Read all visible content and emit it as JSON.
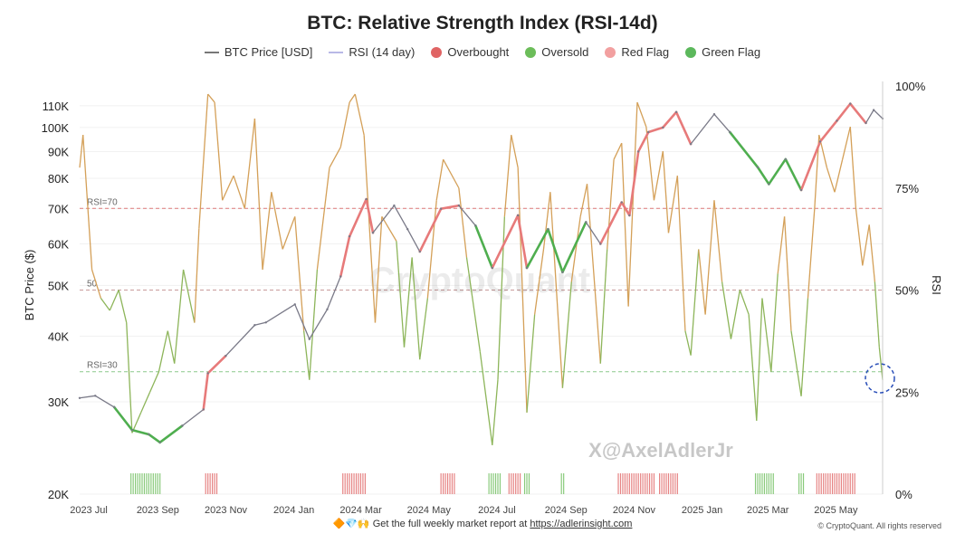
{
  "title": "BTC: Relative Strength Index (RSI-14d)",
  "legend": [
    {
      "label": "BTC Price [USD]",
      "kind": "line",
      "color": "#777777"
    },
    {
      "label": "RSI (14 day)",
      "kind": "line",
      "color": "#b8b8e6"
    },
    {
      "label": "Overbought",
      "kind": "dot",
      "color": "#e06464"
    },
    {
      "label": "Oversold",
      "kind": "dot",
      "color": "#6cbd5a"
    },
    {
      "label": "Red Flag",
      "kind": "dot",
      "color": "#f2a0a0"
    },
    {
      "label": "Green Flag",
      "kind": "dot",
      "color": "#5cb85c"
    }
  ],
  "watermark": "CryptoQuant",
  "author_tag": "X@AxelAdlerJr",
  "footer": {
    "emoji": "🔶💎🙌",
    "text": "Get the full weekly market report at",
    "link": "https://adlerinsight.com"
  },
  "copyright": "© CryptoQuant. All rights reserved",
  "chart_data": {
    "type": "line",
    "ylabel": "BTC Price ($)",
    "y2label": "RSI",
    "y_scale": "log",
    "ylim": [
      20000,
      120000
    ],
    "y2lim": [
      0,
      100
    ],
    "y_ticks": [
      "20K",
      "30K",
      "40K",
      "50K",
      "60K",
      "70K",
      "80K",
      "90K",
      "100K",
      "110K"
    ],
    "y_tick_values": [
      20000,
      30000,
      40000,
      50000,
      60000,
      70000,
      80000,
      90000,
      100000,
      110000
    ],
    "y2_ticks": [
      "0%",
      "25%",
      "50%",
      "75%",
      "100%"
    ],
    "y2_tick_values": [
      0,
      25,
      50,
      75,
      100
    ],
    "x_ticks": [
      "2023 Jul",
      "2023 Sep",
      "2023 Nov",
      "2024 Jan",
      "2024 Mar",
      "2024 May",
      "2024 Jul",
      "2024 Sep",
      "2024 Nov",
      "2025 Jan",
      "2025 Mar",
      "2025 May"
    ],
    "x_tick_dates": [
      "2023-07-01",
      "2023-09-01",
      "2023-11-01",
      "2024-01-01",
      "2024-03-01",
      "2024-05-01",
      "2024-07-01",
      "2024-09-01",
      "2024-11-01",
      "2025-01-01",
      "2025-03-01",
      "2025-05-01"
    ],
    "x_range": [
      "2023-07-01",
      "2025-06-20"
    ],
    "reference_lines": [
      {
        "label": "RSI=70",
        "value": 70,
        "color": "#e07a7a"
      },
      {
        "label": "50",
        "value": 50,
        "color": "#c89c9c"
      },
      {
        "label": "RSI=30",
        "value": 30,
        "color": "#8cc98c"
      }
    ],
    "series": [
      {
        "name": "BTC Price [USD]",
        "color": "#7a7a88",
        "points": [
          [
            "2023-07-01",
            30500
          ],
          [
            "2023-07-15",
            30800
          ],
          [
            "2023-08-01",
            29300
          ],
          [
            "2023-08-17",
            26500
          ],
          [
            "2023-09-01",
            26000
          ],
          [
            "2023-09-11",
            25100
          ],
          [
            "2023-10-01",
            27000
          ],
          [
            "2023-10-20",
            29000
          ],
          [
            "2023-10-24",
            34000
          ],
          [
            "2023-11-09",
            36700
          ],
          [
            "2023-12-05",
            42000
          ],
          [
            "2023-12-15",
            42500
          ],
          [
            "2024-01-10",
            46000
          ],
          [
            "2024-01-23",
            39500
          ],
          [
            "2024-02-08",
            45000
          ],
          [
            "2024-02-20",
            52000
          ],
          [
            "2024-02-28",
            62000
          ],
          [
            "2024-03-14",
            73000
          ],
          [
            "2024-03-20",
            63000
          ],
          [
            "2024-04-08",
            71000
          ],
          [
            "2024-04-20",
            64000
          ],
          [
            "2024-05-01",
            58000
          ],
          [
            "2024-05-20",
            70000
          ],
          [
            "2024-06-05",
            71000
          ],
          [
            "2024-06-20",
            65000
          ],
          [
            "2024-07-05",
            54000
          ],
          [
            "2024-07-28",
            68000
          ],
          [
            "2024-08-05",
            54000
          ],
          [
            "2024-08-24",
            64000
          ],
          [
            "2024-09-06",
            53000
          ],
          [
            "2024-09-27",
            66000
          ],
          [
            "2024-10-10",
            60000
          ],
          [
            "2024-10-29",
            72000
          ],
          [
            "2024-11-05",
            68000
          ],
          [
            "2024-11-13",
            90000
          ],
          [
            "2024-11-22",
            98000
          ],
          [
            "2024-12-05",
            100000
          ],
          [
            "2024-12-17",
            107000
          ],
          [
            "2024-12-30",
            93000
          ],
          [
            "2025-01-20",
            106000
          ],
          [
            "2025-02-03",
            98000
          ],
          [
            "2025-02-28",
            84000
          ],
          [
            "2025-03-10",
            78000
          ],
          [
            "2025-03-25",
            87000
          ],
          [
            "2025-04-08",
            76000
          ],
          [
            "2025-04-25",
            94000
          ],
          [
            "2025-05-10",
            103000
          ],
          [
            "2025-05-22",
            111000
          ],
          [
            "2025-06-05",
            102000
          ],
          [
            "2025-06-12",
            108000
          ],
          [
            "2025-06-20",
            104000
          ]
        ]
      },
      {
        "name": "RSI (14 day)",
        "color": "#c7a86b",
        "points": [
          [
            "2023-07-01",
            80
          ],
          [
            "2023-07-04",
            88
          ],
          [
            "2023-07-12",
            55
          ],
          [
            "2023-07-20",
            48
          ],
          [
            "2023-07-28",
            45
          ],
          [
            "2023-08-05",
            50
          ],
          [
            "2023-08-12",
            42
          ],
          [
            "2023-08-17",
            15
          ],
          [
            "2023-08-25",
            20
          ],
          [
            "2023-09-02",
            25
          ],
          [
            "2023-09-10",
            30
          ],
          [
            "2023-09-18",
            40
          ],
          [
            "2023-09-24",
            32
          ],
          [
            "2023-10-02",
            55
          ],
          [
            "2023-10-12",
            42
          ],
          [
            "2023-10-16",
            65
          ],
          [
            "2023-10-24",
            98
          ],
          [
            "2023-10-30",
            96
          ],
          [
            "2023-11-06",
            72
          ],
          [
            "2023-11-16",
            78
          ],
          [
            "2023-11-26",
            70
          ],
          [
            "2023-12-05",
            92
          ],
          [
            "2023-12-12",
            55
          ],
          [
            "2023-12-20",
            74
          ],
          [
            "2023-12-30",
            60
          ],
          [
            "2024-01-10",
            68
          ],
          [
            "2024-01-18",
            40
          ],
          [
            "2024-01-23",
            28
          ],
          [
            "2024-01-30",
            55
          ],
          [
            "2024-02-10",
            80
          ],
          [
            "2024-02-20",
            85
          ],
          [
            "2024-02-28",
            96
          ],
          [
            "2024-03-04",
            98
          ],
          [
            "2024-03-12",
            88
          ],
          [
            "2024-03-18",
            60
          ],
          [
            "2024-03-22",
            42
          ],
          [
            "2024-03-28",
            68
          ],
          [
            "2024-04-10",
            62
          ],
          [
            "2024-04-17",
            36
          ],
          [
            "2024-04-24",
            58
          ],
          [
            "2024-05-01",
            33
          ],
          [
            "2024-05-08",
            48
          ],
          [
            "2024-05-16",
            72
          ],
          [
            "2024-05-22",
            82
          ],
          [
            "2024-06-05",
            75
          ],
          [
            "2024-06-12",
            58
          ],
          [
            "2024-06-24",
            35
          ],
          [
            "2024-07-05",
            12
          ],
          [
            "2024-07-10",
            28
          ],
          [
            "2024-07-16",
            68
          ],
          [
            "2024-07-22",
            88
          ],
          [
            "2024-07-28",
            80
          ],
          [
            "2024-08-05",
            20
          ],
          [
            "2024-08-12",
            44
          ],
          [
            "2024-08-20",
            60
          ],
          [
            "2024-08-26",
            74
          ],
          [
            "2024-09-06",
            26
          ],
          [
            "2024-09-14",
            52
          ],
          [
            "2024-09-22",
            68
          ],
          [
            "2024-09-28",
            76
          ],
          [
            "2024-10-10",
            32
          ],
          [
            "2024-10-16",
            60
          ],
          [
            "2024-10-22",
            82
          ],
          [
            "2024-10-29",
            86
          ],
          [
            "2024-11-04",
            46
          ],
          [
            "2024-11-12",
            96
          ],
          [
            "2024-11-20",
            90
          ],
          [
            "2024-11-27",
            72
          ],
          [
            "2024-12-05",
            84
          ],
          [
            "2024-12-10",
            64
          ],
          [
            "2024-12-18",
            78
          ],
          [
            "2024-12-25",
            40
          ],
          [
            "2024-12-30",
            34
          ],
          [
            "2025-01-06",
            60
          ],
          [
            "2025-01-12",
            44
          ],
          [
            "2025-01-20",
            72
          ],
          [
            "2025-01-27",
            52
          ],
          [
            "2025-02-04",
            38
          ],
          [
            "2025-02-12",
            50
          ],
          [
            "2025-02-20",
            44
          ],
          [
            "2025-02-27",
            18
          ],
          [
            "2025-03-04",
            48
          ],
          [
            "2025-03-12",
            30
          ],
          [
            "2025-03-18",
            54
          ],
          [
            "2025-03-24",
            68
          ],
          [
            "2025-03-30",
            40
          ],
          [
            "2025-04-08",
            24
          ],
          [
            "2025-04-14",
            48
          ],
          [
            "2025-04-20",
            70
          ],
          [
            "2025-04-24",
            88
          ],
          [
            "2025-05-01",
            80
          ],
          [
            "2025-05-08",
            74
          ],
          [
            "2025-05-15",
            82
          ],
          [
            "2025-05-22",
            90
          ],
          [
            "2025-05-27",
            70
          ],
          [
            "2025-06-02",
            56
          ],
          [
            "2025-06-08",
            66
          ],
          [
            "2025-06-13",
            52
          ],
          [
            "2025-06-17",
            36
          ],
          [
            "2025-06-20",
            28
          ]
        ]
      }
    ],
    "overbought_ranges": [
      [
        "2023-10-22",
        "2023-11-02"
      ],
      [
        "2024-02-22",
        "2024-03-14"
      ],
      [
        "2024-05-20",
        "2024-06-02"
      ],
      [
        "2024-07-20",
        "2024-07-30"
      ],
      [
        "2024-10-26",
        "2024-11-28"
      ],
      [
        "2024-12-02",
        "2024-12-18"
      ],
      [
        "2025-04-22",
        "2025-05-27"
      ]
    ],
    "oversold_ranges": [
      [
        "2023-08-16",
        "2023-09-12"
      ],
      [
        "2024-07-02",
        "2024-07-12"
      ],
      [
        "2024-08-03",
        "2024-08-07"
      ],
      [
        "2024-09-05",
        "2024-09-08"
      ],
      [
        "2025-02-26",
        "2025-03-14"
      ],
      [
        "2025-04-06",
        "2025-04-10"
      ]
    ],
    "highlight_note": "current RSI near 28%"
  }
}
